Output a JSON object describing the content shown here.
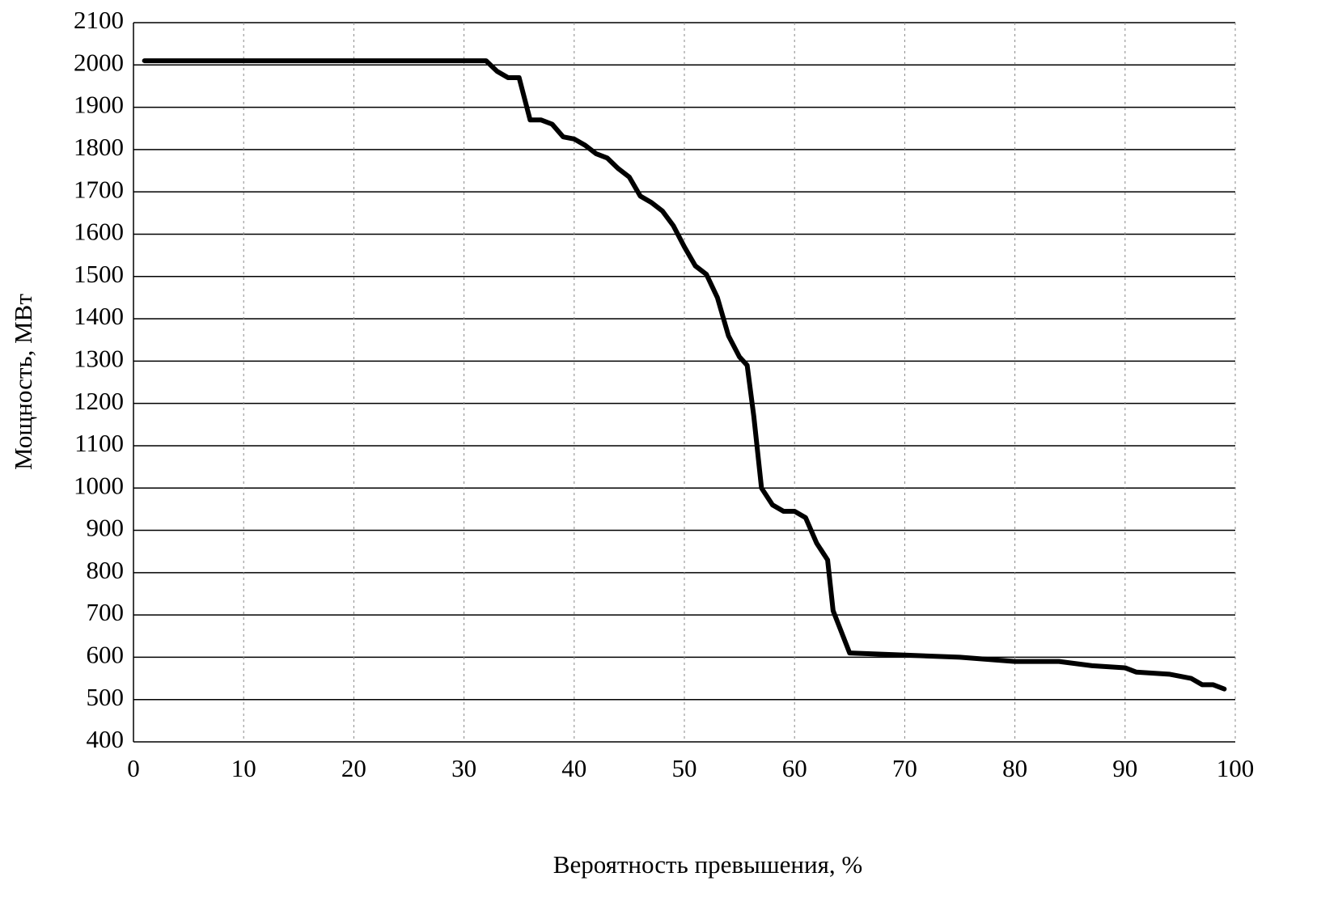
{
  "chart_data": {
    "type": "line",
    "x_label": "Вероятность превышения, %",
    "y_label": "Мощность, МВт",
    "xlim": [
      0,
      100
    ],
    "xticks": [
      0,
      10,
      20,
      30,
      40,
      50,
      60,
      70,
      80,
      90,
      100
    ],
    "ylim": [
      400,
      2100
    ],
    "yticks": [
      400,
      500,
      600,
      700,
      800,
      900,
      1000,
      1100,
      1200,
      1300,
      1400,
      1500,
      1600,
      1700,
      1800,
      1900,
      2000,
      2100
    ],
    "grid": true,
    "series": [
      {
        "color": "#000000",
        "x": [
          1,
          32,
          33,
          34,
          35,
          36,
          37,
          38,
          39,
          40,
          41,
          42,
          43,
          44,
          45,
          46,
          47,
          48,
          49,
          50,
          51,
          52,
          53,
          54,
          55,
          55.7,
          56.3,
          57,
          58,
          59,
          60,
          61,
          62,
          63,
          63.5,
          65,
          70,
          75,
          80,
          84,
          87,
          90,
          91,
          94,
          96,
          97,
          98,
          99
        ],
        "values": [
          2010,
          2010,
          1985,
          1970,
          1970,
          1870,
          1870,
          1860,
          1830,
          1825,
          1810,
          1790,
          1780,
          1755,
          1735,
          1690,
          1675,
          1655,
          1620,
          1570,
          1525,
          1505,
          1450,
          1360,
          1310,
          1290,
          1170,
          1000,
          960,
          945,
          945,
          930,
          870,
          830,
          710,
          610,
          605,
          600,
          590,
          590,
          580,
          575,
          565,
          560,
          550,
          535,
          535,
          525
        ]
      }
    ]
  }
}
